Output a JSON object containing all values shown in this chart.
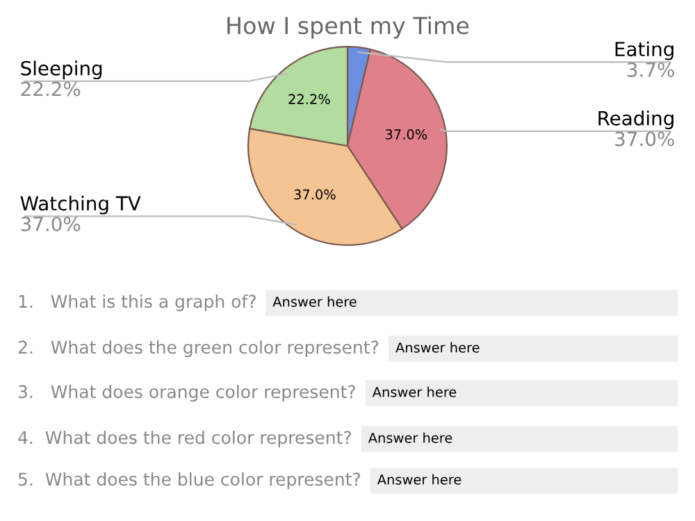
{
  "chart_data": {
    "type": "pie",
    "title": "How I spent my Time",
    "categories": [
      "Eating",
      "Reading",
      "Watching TV",
      "Sleeping"
    ],
    "values": [
      3.7,
      37.0,
      37.0,
      22.2
    ],
    "colors": [
      "#6a8fe0",
      "#e0808a",
      "#f4c592",
      "#b3dca0"
    ],
    "value_labels": [
      null,
      "37.0%",
      "37.0%",
      "22.2%"
    ],
    "annotations": [
      {
        "text": "3.7%",
        "x": "Eating"
      },
      {
        "text": "37.0%",
        "x": "Reading"
      },
      {
        "text": "37.0%",
        "x": "Watching TV"
      },
      {
        "text": "22.2%",
        "x": "Sleeping"
      },
      "1.   What is this a graph of?",
      "Answer here",
      "2.   What does the green color represent?",
      "Answer here",
      "3.   What does orange color represent?",
      "Answer here",
      "4.  What does the red color represent?",
      "Answer here",
      "5.  What does the blue color represent?",
      "Answer here"
    ]
  }
}
